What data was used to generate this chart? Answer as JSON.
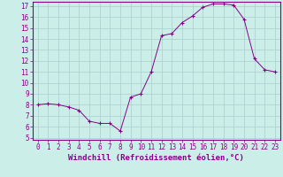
{
  "xlabel": "Windchill (Refroidissement éolien,°C)",
  "hours": [
    0,
    1,
    2,
    3,
    4,
    5,
    6,
    7,
    8,
    9,
    10,
    11,
    12,
    13,
    14,
    15,
    16,
    17,
    18,
    19,
    20,
    21,
    22,
    23
  ],
  "values": [
    8.0,
    8.1,
    8.0,
    7.8,
    7.5,
    6.5,
    6.3,
    6.3,
    5.6,
    8.7,
    9.0,
    11.0,
    14.3,
    14.5,
    15.5,
    16.1,
    16.9,
    17.2,
    17.2,
    17.1,
    15.8,
    12.2,
    11.2,
    11.0
  ],
  "ylim": [
    4.8,
    17.4
  ],
  "xlim": [
    -0.5,
    23.5
  ],
  "yticks": [
    5,
    6,
    7,
    8,
    9,
    10,
    11,
    12,
    13,
    14,
    15,
    16,
    17
  ],
  "xticks": [
    0,
    1,
    2,
    3,
    4,
    5,
    6,
    7,
    8,
    9,
    10,
    11,
    12,
    13,
    14,
    15,
    16,
    17,
    18,
    19,
    20,
    21,
    22,
    23
  ],
  "line_color": "#880088",
  "marker_color": "#880088",
  "bg_color": "#cceee8",
  "grid_color": "#aacccc",
  "border_color": "#880088",
  "tick_label_color": "#880088",
  "xlabel_color": "#880088",
  "font_size": 5.5,
  "xlabel_font_size": 6.5
}
